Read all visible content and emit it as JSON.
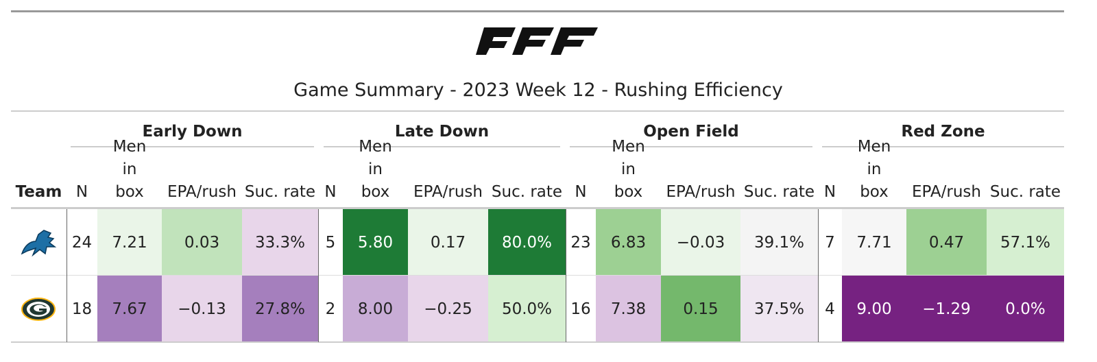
{
  "title": "Game Summary - 2023 Week 12 - Rushing Efficiency",
  "table": {
    "team_header": "Team",
    "groups": [
      "Early Down",
      "Late Down",
      "Open Field",
      "Red Zone"
    ],
    "columns": [
      "N",
      "Men in box",
      "EPA/rush",
      "Suc. rate"
    ],
    "rows": [
      {
        "cells": [
          "24",
          "7.21",
          "0.03",
          "33.3%",
          "5",
          "5.80",
          "0.17",
          "80.0%",
          "23",
          "6.83",
          "−0.03",
          "39.1%",
          "7",
          "7.71",
          "0.47",
          "57.1%"
        ],
        "colors": [
          "#ffffff",
          "#eaf5e8",
          "#c1e3bb",
          "#e8d6ea",
          "#ffffff",
          "#1e7b36",
          "#eaf5e8",
          "#1e7b36",
          "#ffffff",
          "#9dd093",
          "#eaf5e8",
          "#f4f4f4",
          "#ffffff",
          "#f6f6f6",
          "#9dd093",
          "#d6efd1"
        ]
      },
      {
        "cells": [
          "18",
          "7.67",
          "−0.13",
          "27.8%",
          "2",
          "8.00",
          "−0.25",
          "50.0%",
          "16",
          "7.38",
          "0.15",
          "37.5%",
          "4",
          "9.00",
          "−1.29",
          "0.0%"
        ],
        "colors": [
          "#ffffff",
          "#a57fbd",
          "#e8d6ea",
          "#a57fbd",
          "#ffffff",
          "#c8acd6",
          "#e8d6ea",
          "#d6efd1",
          "#ffffff",
          "#dcc3e1",
          "#74b86c",
          "#efe6f1",
          "#ffffff",
          "#762281",
          "#762281",
          "#762281"
        ]
      }
    ]
  }
}
